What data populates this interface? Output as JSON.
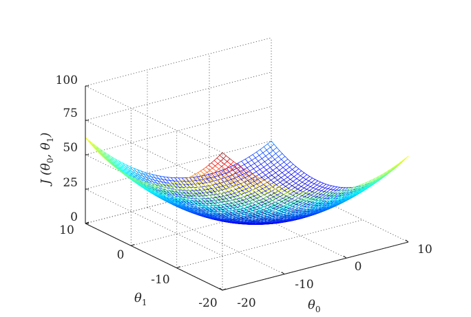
{
  "chart_data": {
    "type": "surface",
    "function": "J(theta0, theta1) = (theta0^2 + theta1^2) / 8",
    "x": {
      "label_main": "θ",
      "label_sub": "0",
      "range": [
        -20,
        10
      ],
      "ticks": [
        "-20",
        "-10",
        "0",
        "10"
      ]
    },
    "y": {
      "label_main": "θ",
      "label_sub": "1",
      "range": [
        -20,
        10
      ],
      "ticks": [
        "-20",
        "-10",
        "0",
        "10"
      ]
    },
    "z": {
      "label": "J(θ₀, θ₁)",
      "label_main": "J (θ",
      "label_sub0": "0",
      "label_mid": ", θ",
      "label_sub1": "1",
      "label_end": ")",
      "range": [
        0,
        100
      ],
      "ticks": [
        "0",
        "25",
        "50",
        "75",
        "100"
      ]
    },
    "grid": true,
    "colormap": "jet",
    "mesh": "wireframe"
  }
}
